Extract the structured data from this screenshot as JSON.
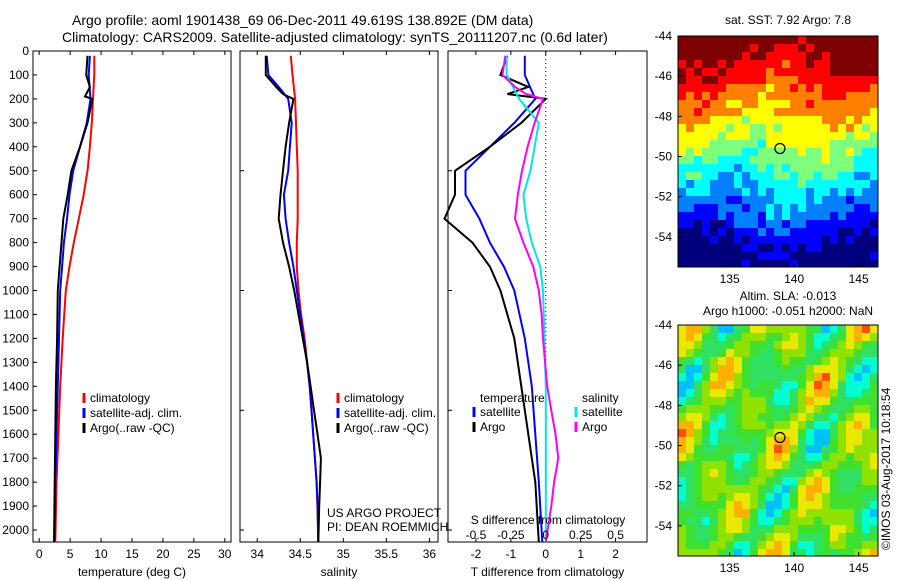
{
  "header": {
    "line1": "Argo profile: aoml 1901438_69 06-Dec-2011 49.619S 138.892E (DM data)",
    "line2": "Climatology: CARS2009. Satellite-adjusted climatology: synTS_20111207.nc (0.6d later)"
  },
  "colors": {
    "climatology": "#ff0000",
    "satellite": "#0000ff",
    "argo": "#000000",
    "sal_satellite": "#00e5e5",
    "sal_argo": "#ff00ff"
  },
  "chart_data": [
    {
      "id": "temperature",
      "type": "line",
      "xlabel": "temperature (deg C)",
      "ylabel": "",
      "xlim": [
        -1,
        31
      ],
      "ylim": [
        2050,
        0
      ],
      "xticks": [
        0,
        5,
        10,
        15,
        20,
        25,
        30
      ],
      "yticks": [
        0,
        100,
        200,
        300,
        400,
        500,
        600,
        700,
        800,
        900,
        1000,
        1100,
        1200,
        1300,
        1400,
        1500,
        1600,
        1700,
        1800,
        1900,
        2000
      ],
      "legend": {
        "entries": [
          "climatology",
          "satellite-adj. clim.",
          "Argo(..raw -QC)"
        ],
        "placement": "center-right"
      },
      "series": [
        {
          "name": "climatology",
          "color": "#ff0000",
          "points": [
            [
              8.9,
              20
            ],
            [
              8.9,
              100
            ],
            [
              8.7,
              200
            ],
            [
              8.5,
              300
            ],
            [
              8.2,
              400
            ],
            [
              7.8,
              500
            ],
            [
              7.2,
              600
            ],
            [
              6.4,
              700
            ],
            [
              5.6,
              800
            ],
            [
              4.9,
              900
            ],
            [
              4.3,
              1000
            ],
            [
              3.8,
              1200
            ],
            [
              3.4,
              1400
            ],
            [
              3.1,
              1600
            ],
            [
              2.8,
              1800
            ],
            [
              2.6,
              2050
            ]
          ]
        },
        {
          "name": "satellite-adj. clim.",
          "color": "#0000ff",
          "points": [
            [
              8.2,
              20
            ],
            [
              8.0,
              100
            ],
            [
              8.3,
              200
            ],
            [
              7.7,
              300
            ],
            [
              6.6,
              400
            ],
            [
              5.5,
              500
            ],
            [
              4.9,
              600
            ],
            [
              4.5,
              700
            ],
            [
              4.0,
              800
            ],
            [
              3.7,
              900
            ],
            [
              3.4,
              1000
            ],
            [
              3.2,
              1200
            ],
            [
              3.0,
              1400
            ],
            [
              2.8,
              1600
            ],
            [
              2.6,
              1800
            ],
            [
              2.5,
              2050
            ]
          ]
        },
        {
          "name": "Argo(..raw -QC)",
          "color": "#000000",
          "points": [
            [
              7.8,
              20
            ],
            [
              7.6,
              100
            ],
            [
              8.2,
              150
            ],
            [
              7.4,
              190
            ],
            [
              8.6,
              200
            ],
            [
              7.8,
              300
            ],
            [
              6.6,
              400
            ],
            [
              5.2,
              500
            ],
            [
              4.6,
              600
            ],
            [
              3.9,
              700
            ],
            [
              3.6,
              800
            ],
            [
              3.3,
              900
            ],
            [
              3.0,
              1000
            ],
            [
              2.9,
              1200
            ],
            [
              2.7,
              1400
            ],
            [
              2.6,
              1600
            ],
            [
              2.5,
              1800
            ],
            [
              2.4,
              2050
            ]
          ]
        }
      ]
    },
    {
      "id": "salinity",
      "type": "line",
      "xlabel": "salinity",
      "ylabel": "",
      "xlim": [
        33.8,
        36.1
      ],
      "ylim": [
        2050,
        0
      ],
      "xticks": [
        34,
        34.5,
        35,
        35.5,
        36
      ],
      "legend": {
        "entries": [
          "climatology",
          "satellite-adj. clim.",
          "Argo(..raw -QC)"
        ],
        "placement": "center-right"
      },
      "annotations": [
        "US ARGO PROJECT",
        "PI: DEAN ROEMMICH"
      ],
      "series": [
        {
          "name": "climatology",
          "color": "#ff0000",
          "points": [
            [
              34.39,
              20
            ],
            [
              34.41,
              100
            ],
            [
              34.44,
              200
            ],
            [
              34.45,
              300
            ],
            [
              34.46,
              400
            ],
            [
              34.47,
              500
            ],
            [
              34.47,
              600
            ],
            [
              34.47,
              700
            ],
            [
              34.46,
              800
            ],
            [
              34.46,
              900
            ],
            [
              34.48,
              1000
            ],
            [
              34.51,
              1100
            ],
            [
              34.55,
              1200
            ],
            [
              34.58,
              1300
            ],
            [
              34.61,
              1400
            ],
            [
              34.63,
              1500
            ],
            [
              34.65,
              1600
            ],
            [
              34.67,
              1700
            ],
            [
              34.69,
              1800
            ],
            [
              34.7,
              1900
            ],
            [
              34.71,
              2050
            ]
          ]
        },
        {
          "name": "satellite-adj. clim.",
          "color": "#0000ff",
          "points": [
            [
              34.11,
              20
            ],
            [
              34.13,
              100
            ],
            [
              34.25,
              150
            ],
            [
              34.36,
              200
            ],
            [
              34.4,
              300
            ],
            [
              34.38,
              400
            ],
            [
              34.36,
              500
            ],
            [
              34.31,
              600
            ],
            [
              34.33,
              700
            ],
            [
              34.37,
              800
            ],
            [
              34.42,
              900
            ],
            [
              34.46,
              1000
            ],
            [
              34.5,
              1100
            ],
            [
              34.54,
              1200
            ],
            [
              34.58,
              1300
            ],
            [
              34.61,
              1400
            ],
            [
              34.63,
              1500
            ],
            [
              34.65,
              1600
            ],
            [
              34.67,
              1700
            ],
            [
              34.69,
              1800
            ],
            [
              34.7,
              1900
            ],
            [
              34.71,
              2050
            ]
          ]
        },
        {
          "name": "Argo(..raw -QC)",
          "color": "#000000",
          "points": [
            [
              34.1,
              20
            ],
            [
              34.1,
              100
            ],
            [
              34.22,
              150
            ],
            [
              34.3,
              180
            ],
            [
              34.42,
              200
            ],
            [
              34.37,
              300
            ],
            [
              34.33,
              400
            ],
            [
              34.3,
              500
            ],
            [
              34.27,
              600
            ],
            [
              34.25,
              700
            ],
            [
              34.3,
              800
            ],
            [
              34.37,
              900
            ],
            [
              34.43,
              1000
            ],
            [
              34.48,
              1100
            ],
            [
              34.53,
              1200
            ],
            [
              34.58,
              1300
            ],
            [
              34.62,
              1400
            ],
            [
              34.66,
              1500
            ],
            [
              34.7,
              1600
            ],
            [
              34.74,
              1700
            ],
            [
              34.73,
              1800
            ],
            [
              34.72,
              1900
            ],
            [
              34.71,
              2050
            ]
          ]
        }
      ]
    },
    {
      "id": "difference",
      "type": "line",
      "xlabel": "T difference from climatology",
      "xlabel_top": "S difference from climatology",
      "xlim": [
        -2.8,
        2.9
      ],
      "ylim": [
        2050,
        0
      ],
      "xticks": [
        -2,
        -1,
        0,
        1,
        2
      ],
      "sxticks": [
        "-0.5",
        "-0.25",
        "0",
        "0.25",
        "0.5"
      ],
      "legend": {
        "temperature_title": "temperature",
        "salinity_title": "salinity",
        "entries": [
          "satellite",
          "Argo",
          "satellite",
          "Argo"
        ],
        "placement": "center-right"
      },
      "series": [
        {
          "name": "T satellite",
          "color": "#0000ff",
          "points": [
            [
              -0.6,
              20
            ],
            [
              -0.6,
              100
            ],
            [
              -0.3,
              200
            ],
            [
              -0.9,
              300
            ],
            [
              -1.6,
              400
            ],
            [
              -2.3,
              500
            ],
            [
              -2.3,
              600
            ],
            [
              -1.9,
              700
            ],
            [
              -1.6,
              800
            ],
            [
              -1.2,
              900
            ],
            [
              -0.9,
              1000
            ],
            [
              -0.6,
              1200
            ],
            [
              -0.4,
              1400
            ],
            [
              -0.3,
              1600
            ],
            [
              -0.2,
              1800
            ],
            [
              -0.1,
              2050
            ]
          ]
        },
        {
          "name": "T Argo",
          "color": "#000000",
          "points": [
            [
              -1.1,
              20
            ],
            [
              -1.3,
              100
            ],
            [
              -0.5,
              150
            ],
            [
              -1.1,
              180
            ],
            [
              0.0,
              200
            ],
            [
              -0.7,
              300
            ],
            [
              -1.6,
              400
            ],
            [
              -2.6,
              500
            ],
            [
              -2.6,
              600
            ],
            [
              -2.9,
              700
            ],
            [
              -2.1,
              800
            ],
            [
              -1.6,
              900
            ],
            [
              -1.3,
              1000
            ],
            [
              -0.9,
              1200
            ],
            [
              -0.7,
              1400
            ],
            [
              -0.5,
              1600
            ],
            [
              -0.3,
              1800
            ],
            [
              -0.2,
              2050
            ]
          ]
        },
        {
          "name": "S satellite",
          "color": "#00e5e5",
          "points": [
            [
              -0.28,
              20
            ],
            [
              -0.28,
              100
            ],
            [
              -0.19,
              200
            ],
            [
              -0.05,
              300
            ],
            [
              -0.08,
              400
            ],
            [
              -0.11,
              500
            ],
            [
              -0.16,
              600
            ],
            [
              -0.14,
              700
            ],
            [
              -0.1,
              800
            ],
            [
              -0.04,
              900
            ],
            [
              -0.02,
              1000
            ],
            [
              -0.01,
              1200
            ],
            [
              0.0,
              1400
            ],
            [
              0.0,
              1600
            ],
            [
              0.0,
              1800
            ],
            [
              0.0,
              2050
            ]
          ]
        },
        {
          "name": "S Argo",
          "color": "#ff00ff",
          "points": [
            [
              -0.29,
              20
            ],
            [
              -0.31,
              100
            ],
            [
              -0.22,
              150
            ],
            [
              -0.14,
              180
            ],
            [
              -0.02,
              200
            ],
            [
              -0.08,
              300
            ],
            [
              -0.13,
              400
            ],
            [
              -0.17,
              500
            ],
            [
              -0.2,
              600
            ],
            [
              -0.22,
              700
            ],
            [
              -0.16,
              800
            ],
            [
              -0.09,
              900
            ],
            [
              -0.05,
              1000
            ],
            [
              -0.03,
              1100
            ],
            [
              -0.02,
              1200
            ],
            [
              0.01,
              1400
            ],
            [
              0.04,
              1500
            ],
            [
              0.07,
              1600
            ],
            [
              0.09,
              1700
            ],
            [
              0.06,
              1800
            ],
            [
              0.04,
              1900
            ],
            [
              0.0,
              2050
            ]
          ]
        }
      ]
    },
    {
      "id": "sst_map",
      "type": "heatmap",
      "title": "sat. SST: 7.92 Argo: 7.8",
      "xticks": [
        "135",
        "140",
        "145"
      ],
      "yticks": [
        "-44",
        "-46",
        "-48",
        "-50",
        "-52",
        "-54"
      ],
      "xlim": [
        131,
        146.5
      ],
      "ylim": [
        -55.5,
        -44
      ],
      "marker": {
        "lon": 138.9,
        "lat": -49.6
      },
      "palette": [
        "#00007f",
        "#0000ff",
        "#007fff",
        "#00ffff",
        "#7fff7f",
        "#ffff00",
        "#ff7f00",
        "#ff0000",
        "#7f0000"
      ]
    },
    {
      "id": "sla_map",
      "type": "heatmap",
      "title_line1": "Altim. SLA: -0.013",
      "title_line2": "Argo h1000: -0.051 h2000: NaN",
      "xticks": [
        "135",
        "140",
        "145"
      ],
      "yticks": [
        "-44",
        "-46",
        "-48",
        "-50",
        "-52",
        "-54"
      ],
      "xlim": [
        131,
        146.5
      ],
      "ylim": [
        -55.5,
        -44
      ],
      "marker": {
        "lon": 138.9,
        "lat": -49.6
      },
      "watermark": "©IMOS 03-Aug-2017 10:18:54"
    }
  ]
}
